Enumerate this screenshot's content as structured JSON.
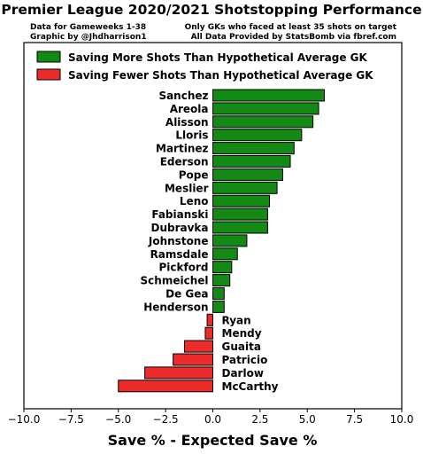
{
  "header": {
    "title": "Premier League 2020/2021 Shotstopping Performance",
    "note_left_1": "Data for Gameweeks 1-38",
    "note_left_2": "Graphic by @Jhdharrison1",
    "note_right_1": "Only GKs who faced at least 35 shots on target",
    "note_right_2": "All Data Provided by StatsBomb via fbref.com"
  },
  "colors": {
    "positive": "#138a13",
    "negative": "#ee2b2b",
    "stroke": "#000000"
  },
  "chart_data": {
    "type": "bar",
    "orientation": "horizontal",
    "title": "Premier League 2020/2021 Shotstopping Performance",
    "xlabel": "Save % - Expected Save %",
    "ylabel": "",
    "xlim": [
      -10.0,
      10.0
    ],
    "xticks": [
      "−10.0",
      "−7.5",
      "−5.0",
      "−2.5",
      "0.0",
      "2.5",
      "5.0",
      "7.5",
      "10.0"
    ],
    "legend": {
      "position": "top",
      "entries": [
        {
          "label": "Saving More Shots Than Hypothetical Average GK",
          "color": "#138a13"
        },
        {
          "label": "Saving Fewer Shots Than Hypothetical Average GK",
          "color": "#ee2b2b"
        }
      ]
    },
    "categories": [
      "Sanchez",
      "Areola",
      "Alisson",
      "Lloris",
      "Martinez",
      "Ederson",
      "Pope",
      "Meslier",
      "Leno",
      "Fabianski",
      "Dubravka",
      "Johnstone",
      "Ramsdale",
      "Pickford",
      "Schmeichel",
      "De Gea",
      "Henderson",
      "Ryan",
      "Mendy",
      "Guaita",
      "Patricio",
      "Darlow",
      "McCarthy"
    ],
    "values": [
      5.9,
      5.6,
      5.3,
      4.7,
      4.3,
      4.1,
      3.7,
      3.4,
      3.0,
      2.9,
      2.9,
      1.8,
      1.3,
      1.0,
      0.9,
      0.6,
      0.6,
      -0.3,
      -0.4,
      -1.5,
      -2.1,
      -3.6,
      -5.0
    ]
  }
}
